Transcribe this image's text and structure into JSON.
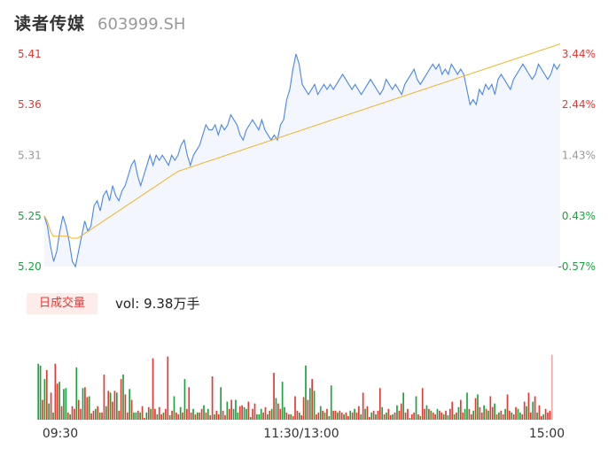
{
  "header": {
    "name": "读者传媒",
    "code": "603999.SH"
  },
  "volume_panel": {
    "tab_label": "日成交量",
    "readout_label": "vol:",
    "readout_value": "9.38万手"
  },
  "colors": {
    "price_line": "#4a86e8",
    "avg_line": "#f5b324",
    "up": "#e53935",
    "down": "#1aa33f",
    "axis_text": "#999999",
    "area_fill": "#f3f6fd"
  },
  "chart_data": [
    {
      "type": "line",
      "series": [
        {
          "name": "",
          "role": "price",
          "values": [
            5.25,
            5.24,
            5.22,
            5.205,
            5.215,
            5.235,
            5.25,
            5.24,
            5.225,
            5.205,
            5.2,
            5.215,
            5.23,
            5.245,
            5.235,
            5.24,
            5.26,
            5.265,
            5.255,
            5.27,
            5.275,
            5.265,
            5.28,
            5.27,
            5.265,
            5.275,
            5.28,
            5.29,
            5.3,
            5.305,
            5.29,
            5.28,
            5.29,
            5.3,
            5.31,
            5.3,
            5.31,
            5.305,
            5.31,
            5.305,
            5.3,
            5.31,
            5.305,
            5.31,
            5.32,
            5.325,
            5.31,
            5.3,
            5.31,
            5.315,
            5.32,
            5.33,
            5.34,
            5.335,
            5.335,
            5.34,
            5.33,
            5.34,
            5.335,
            5.34,
            5.35,
            5.345,
            5.34,
            5.33,
            5.325,
            5.335,
            5.34,
            5.345,
            5.34,
            5.335,
            5.345,
            5.335,
            5.33,
            5.325,
            5.33,
            5.325,
            5.34,
            5.345,
            5.365,
            5.375,
            5.395,
            5.41,
            5.4,
            5.38,
            5.375,
            5.37,
            5.375,
            5.38,
            5.37,
            5.375,
            5.38,
            5.375,
            5.38,
            5.375,
            5.38,
            5.385,
            5.39,
            5.385,
            5.38,
            5.375,
            5.38,
            5.375,
            5.37,
            5.375,
            5.38,
            5.385,
            5.38,
            5.375,
            5.37,
            5.375,
            5.385,
            5.38,
            5.375,
            5.38,
            5.375,
            5.37,
            5.38,
            5.385,
            5.39,
            5.395,
            5.385,
            5.38,
            5.385,
            5.39,
            5.395,
            5.4,
            5.395,
            5.4,
            5.39,
            5.395,
            5.39,
            5.4,
            5.395,
            5.39,
            5.395,
            5.39,
            5.375,
            5.36,
            5.365,
            5.36,
            5.375,
            5.37,
            5.38,
            5.375,
            5.38,
            5.37,
            5.385,
            5.39,
            5.385,
            5.38,
            5.375,
            5.385,
            5.39,
            5.395,
            5.4,
            5.395,
            5.39,
            5.385,
            5.39,
            5.4,
            5.395,
            5.39,
            5.385,
            5.39,
            5.4,
            5.395,
            5.4
          ],
          "color": "#4a86e8"
        },
        {
          "name": "",
          "role": "average",
          "values": [
            5.25,
            5.245,
            5.235,
            5.23,
            5.23,
            5.23,
            5.23,
            5.23,
            5.23,
            5.228,
            5.228,
            5.228,
            5.23,
            5.232,
            5.234,
            5.236,
            5.238,
            5.24,
            5.242,
            5.244,
            5.246,
            5.248,
            5.25,
            5.252,
            5.254,
            5.256,
            5.258,
            5.26,
            5.262,
            5.264,
            5.266,
            5.268,
            5.27,
            5.272,
            5.274,
            5.276,
            5.278,
            5.28,
            5.282,
            5.284,
            5.286,
            5.288,
            5.29,
            5.292,
            5.294,
            5.295,
            5.296,
            5.297,
            5.298,
            5.299,
            5.3,
            5.301,
            5.302,
            5.303,
            5.304,
            5.305,
            5.306,
            5.307,
            5.308,
            5.309,
            5.31,
            5.311,
            5.312,
            5.313,
            5.314,
            5.315,
            5.316,
            5.317,
            5.318,
            5.319,
            5.32,
            5.321,
            5.322,
            5.323,
            5.324,
            5.325,
            5.326,
            5.327,
            5.328,
            5.329,
            5.33,
            5.331,
            5.332,
            5.333,
            5.334,
            5.335,
            5.336,
            5.337,
            5.338,
            5.339,
            5.34,
            5.341,
            5.342,
            5.343,
            5.344,
            5.345,
            5.346,
            5.347,
            5.348,
            5.349,
            5.35,
            5.351,
            5.352,
            5.353,
            5.354,
            5.355,
            5.356,
            5.357,
            5.358,
            5.359,
            5.36,
            5.361,
            5.362,
            5.363,
            5.364,
            5.365,
            5.366,
            5.367,
            5.368,
            5.369,
            5.37,
            5.371,
            5.372,
            5.373,
            5.374,
            5.375,
            5.376,
            5.377,
            5.378,
            5.379,
            5.38,
            5.381,
            5.382,
            5.383,
            5.384,
            5.385,
            5.386,
            5.387,
            5.388,
            5.389,
            5.39,
            5.391,
            5.392,
            5.393,
            5.394,
            5.395,
            5.396,
            5.397,
            5.398,
            5.399,
            5.4,
            5.401,
            5.402,
            5.403,
            5.404,
            5.405,
            5.406,
            5.407,
            5.408,
            5.409,
            5.41,
            5.411,
            5.412,
            5.413,
            5.414,
            5.415,
            5.416,
            5.417,
            5.418,
            5.419,
            5.42
          ],
          "color": "#f5b324"
        }
      ],
      "title": "",
      "xlabel": "",
      "ylabel": "",
      "ylim": [
        5.2,
        5.41
      ],
      "y_ticks_left": [
        "5.41",
        "5.36",
        "5.31",
        "5.25",
        "5.20"
      ],
      "y_ticks_right": [
        "3.44%",
        "2.44%",
        "1.43%",
        "0.43%",
        "-0.57%"
      ],
      "y_tick_values": [
        5.41,
        5.36,
        5.31,
        5.25,
        5.2
      ],
      "grid": false,
      "legend": "none"
    },
    {
      "type": "bar",
      "title": "",
      "xlabel": "",
      "ylabel": "",
      "x_tick_labels": [
        "09:30",
        "11:30/13:00",
        "15:00"
      ],
      "x_tick_fractions": [
        0.0,
        0.5,
        1.0
      ],
      "ylim": [
        0,
        100
      ],
      "values": [
        62,
        60,
        22,
        45,
        55,
        18,
        30,
        8,
        62,
        40,
        42,
        15,
        34,
        35,
        8,
        6,
        15,
        12,
        58,
        22,
        12,
        35,
        36,
        25,
        26,
        7,
        10,
        12,
        15,
        8,
        8,
        50,
        15,
        32,
        30,
        20,
        32,
        30,
        10,
        45,
        50,
        28,
        8,
        34,
        22,
        8,
        8,
        10,
        8,
        15,
        2,
        8,
        14,
        12,
        68,
        12,
        6,
        14,
        6,
        8,
        12,
        70,
        5,
        10,
        26,
        8,
        6,
        14,
        8,
        45,
        12,
        36,
        8,
        12,
        6,
        8,
        8,
        12,
        16,
        8,
        12,
        5,
        48,
        6,
        10,
        6,
        36,
        10,
        5,
        20,
        12,
        22,
        12,
        22,
        8,
        15,
        16,
        14,
        12,
        20,
        3,
        12,
        18,
        6,
        6,
        12,
        8,
        14,
        6,
        10,
        12,
        52,
        24,
        18,
        12,
        42,
        14,
        8,
        6,
        6,
        4,
        26,
        10,
        8,
        5,
        25,
        60,
        22,
        35,
        45,
        32,
        6,
        8,
        15,
        10,
        8,
        12,
        4,
        38,
        10,
        10,
        8,
        10,
        8,
        6,
        8,
        4,
        10,
        8,
        12,
        8,
        15,
        6,
        30,
        12,
        15,
        3,
        8,
        10,
        6,
        10,
        35,
        14,
        6,
        8,
        12,
        5,
        6,
        8,
        16,
        10,
        18,
        30,
        8,
        12,
        2,
        6,
        8,
        26,
        6,
        4,
        35,
        12,
        16,
        12,
        10,
        8,
        6,
        12,
        10,
        8,
        6,
        10,
        5,
        12,
        20,
        6,
        8,
        14,
        22,
        8,
        12,
        30,
        12,
        6,
        10,
        24,
        28,
        14,
        8,
        16,
        12,
        10,
        26,
        14,
        18,
        6,
        8,
        10,
        6,
        12,
        28,
        10,
        8,
        6,
        14,
        12,
        8,
        6,
        20,
        15,
        30,
        8,
        20,
        26,
        8,
        16,
        4,
        6,
        12,
        8,
        10,
        72
      ],
      "directions": [
        "d",
        "d",
        "u",
        "d",
        "u",
        "d",
        "u",
        "d",
        "u",
        "u",
        "d",
        "u",
        "d",
        "d",
        "u",
        "d",
        "u",
        "u",
        "d",
        "u",
        "u",
        "d",
        "u",
        "u",
        "d",
        "u",
        "u",
        "d",
        "u",
        "d",
        "u",
        "u",
        "d",
        "u",
        "d",
        "u",
        "u",
        "d",
        "u",
        "u",
        "d",
        "u",
        "u",
        "d",
        "u",
        "d",
        "d",
        "u",
        "d",
        "u",
        "u",
        "d",
        "u",
        "d",
        "u",
        "u",
        "d",
        "u",
        "u",
        "d",
        "u",
        "u",
        "d",
        "u",
        "d",
        "u",
        "u",
        "d",
        "u",
        "d",
        "u",
        "u",
        "u",
        "d",
        "u",
        "d",
        "u",
        "u",
        "d",
        "u",
        "d",
        "u",
        "u",
        "d",
        "u",
        "u",
        "d",
        "u",
        "u",
        "d",
        "u",
        "u",
        "d",
        "d",
        "d",
        "u",
        "u",
        "d",
        "d",
        "u",
        "d",
        "u",
        "u",
        "d",
        "d",
        "d",
        "u",
        "u",
        "d",
        "u",
        "d",
        "u",
        "d",
        "u",
        "u",
        "d",
        "d",
        "u",
        "u",
        "d",
        "u",
        "u",
        "u",
        "d",
        "u",
        "u",
        "d",
        "u",
        "d",
        "u",
        "d",
        "u",
        "u",
        "d",
        "u",
        "d",
        "u",
        "d",
        "d",
        "u",
        "u",
        "d",
        "u",
        "u",
        "d",
        "u",
        "u",
        "d",
        "u",
        "d",
        "u",
        "u",
        "d",
        "u",
        "d",
        "u",
        "u",
        "d",
        "u",
        "d",
        "u",
        "u",
        "d",
        "u",
        "d",
        "u",
        "u",
        "d",
        "u",
        "d",
        "u",
        "u",
        "d",
        "u",
        "u",
        "d",
        "u",
        "u",
        "d",
        "u",
        "d",
        "u",
        "u",
        "d",
        "u",
        "d",
        "u",
        "u",
        "d",
        "u",
        "u",
        "d",
        "u",
        "d",
        "u",
        "u",
        "d",
        "u",
        "d",
        "u",
        "u",
        "d",
        "d",
        "u",
        "u",
        "d",
        "u",
        "d",
        "u",
        "u",
        "d",
        "u",
        "d",
        "u",
        "u",
        "d",
        "u",
        "d",
        "u",
        "u",
        "d",
        "u",
        "u",
        "d",
        "u",
        "u",
        "d",
        "d",
        "u",
        "u",
        "d",
        "u",
        "u",
        "d",
        "u",
        "d",
        "u",
        "u",
        "d",
        "u",
        "u",
        "u"
      ],
      "grid": false,
      "legend": "none"
    }
  ]
}
